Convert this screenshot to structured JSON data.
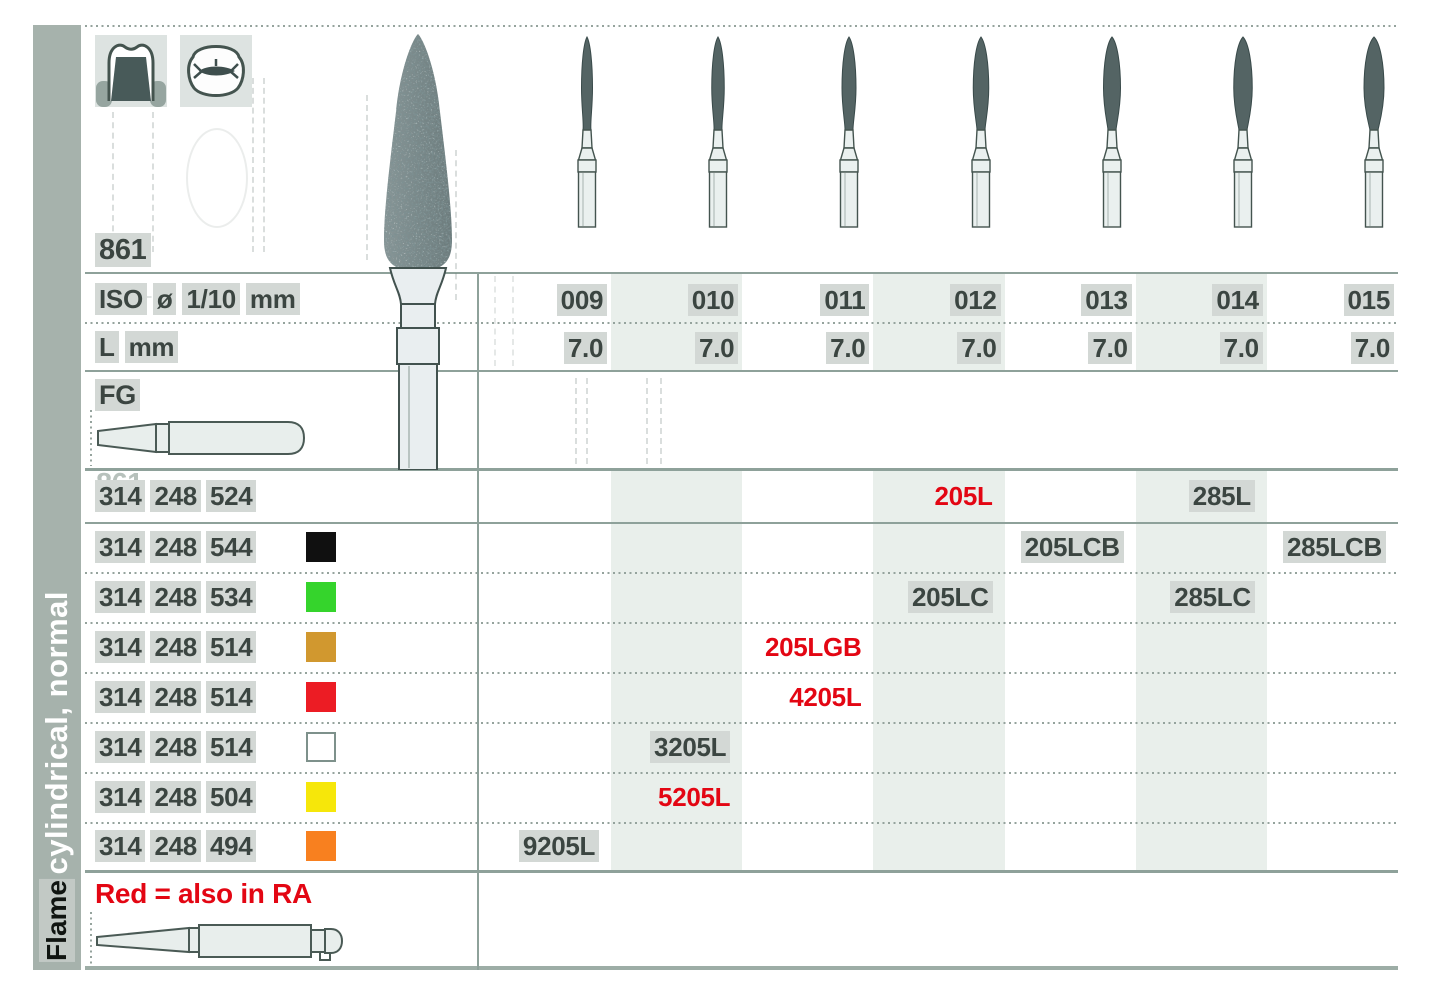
{
  "page": {
    "background": "#ffffff"
  },
  "sidebar": {
    "section_label": "cylindrical, normal",
    "next_section_label": "Flame"
  },
  "section": {
    "figure_number": "861",
    "ghost_figure_number": "861",
    "shank_type": "FG"
  },
  "table": {
    "iso_row_label": "ISO ø 1/10 mm",
    "length_row_label": "L mm",
    "columns": [
      {
        "iso": "009",
        "length_mm": "7.0"
      },
      {
        "iso": "010",
        "length_mm": "7.0"
      },
      {
        "iso": "011",
        "length_mm": "7.0"
      },
      {
        "iso": "012",
        "length_mm": "7.0"
      },
      {
        "iso": "013",
        "length_mm": "7.0"
      },
      {
        "iso": "014",
        "length_mm": "7.0"
      },
      {
        "iso": "015",
        "length_mm": "7.0"
      }
    ]
  },
  "products": [
    {
      "order_number": "314 248 524",
      "grit_color": null,
      "entries": [
        {
          "column": "012",
          "code": "205L",
          "red": true
        },
        {
          "column": "014",
          "code": "285L",
          "red": false
        }
      ]
    },
    {
      "order_number": "314 248 544",
      "grit_color": "black",
      "entries": [
        {
          "column": "013",
          "code": "205LCB",
          "red": false
        },
        {
          "column": "015",
          "code": "285LCB",
          "red": false
        }
      ]
    },
    {
      "order_number": "314 248 534",
      "grit_color": "green",
      "entries": [
        {
          "column": "012",
          "code": "205LC",
          "red": false
        },
        {
          "column": "014",
          "code": "285LC",
          "red": false
        }
      ]
    },
    {
      "order_number": "314 248 514",
      "grit_color": "gold",
      "entries": [
        {
          "column": "011",
          "code": "205LGB",
          "red": true
        }
      ]
    },
    {
      "order_number": "314 248 514",
      "grit_color": "red",
      "entries": [
        {
          "column": "011",
          "code": "4205L",
          "red": true
        }
      ]
    },
    {
      "order_number": "314 248 514",
      "grit_color": "white",
      "entries": [
        {
          "column": "010",
          "code": "3205L",
          "red": false
        }
      ]
    },
    {
      "order_number": "314 248 504",
      "grit_color": "yellow",
      "entries": [
        {
          "column": "010",
          "code": "5205L",
          "red": true
        }
      ]
    },
    {
      "order_number": "314 248 494",
      "grit_color": "orange",
      "entries": [
        {
          "column": "009",
          "code": "9205L",
          "red": false
        }
      ]
    }
  ],
  "footer": {
    "note": "Red = also in RA"
  },
  "colors": {
    "accent_red": "#e30613",
    "text_dark": "#3b4541",
    "highlight_box": "#d3d8d5",
    "sidebar_bg": "#a6b2ac",
    "column_band": "#e9efeb",
    "rule_line": "#8ea19a",
    "bur_head": "#546464",
    "grit_colors": {
      "black": "#101010",
      "green": "#35d42c",
      "gold": "#d1982f",
      "red": "#ec1c24",
      "white": "#ffffff",
      "yellow": "#f6e70a",
      "orange": "#f8801f"
    }
  }
}
